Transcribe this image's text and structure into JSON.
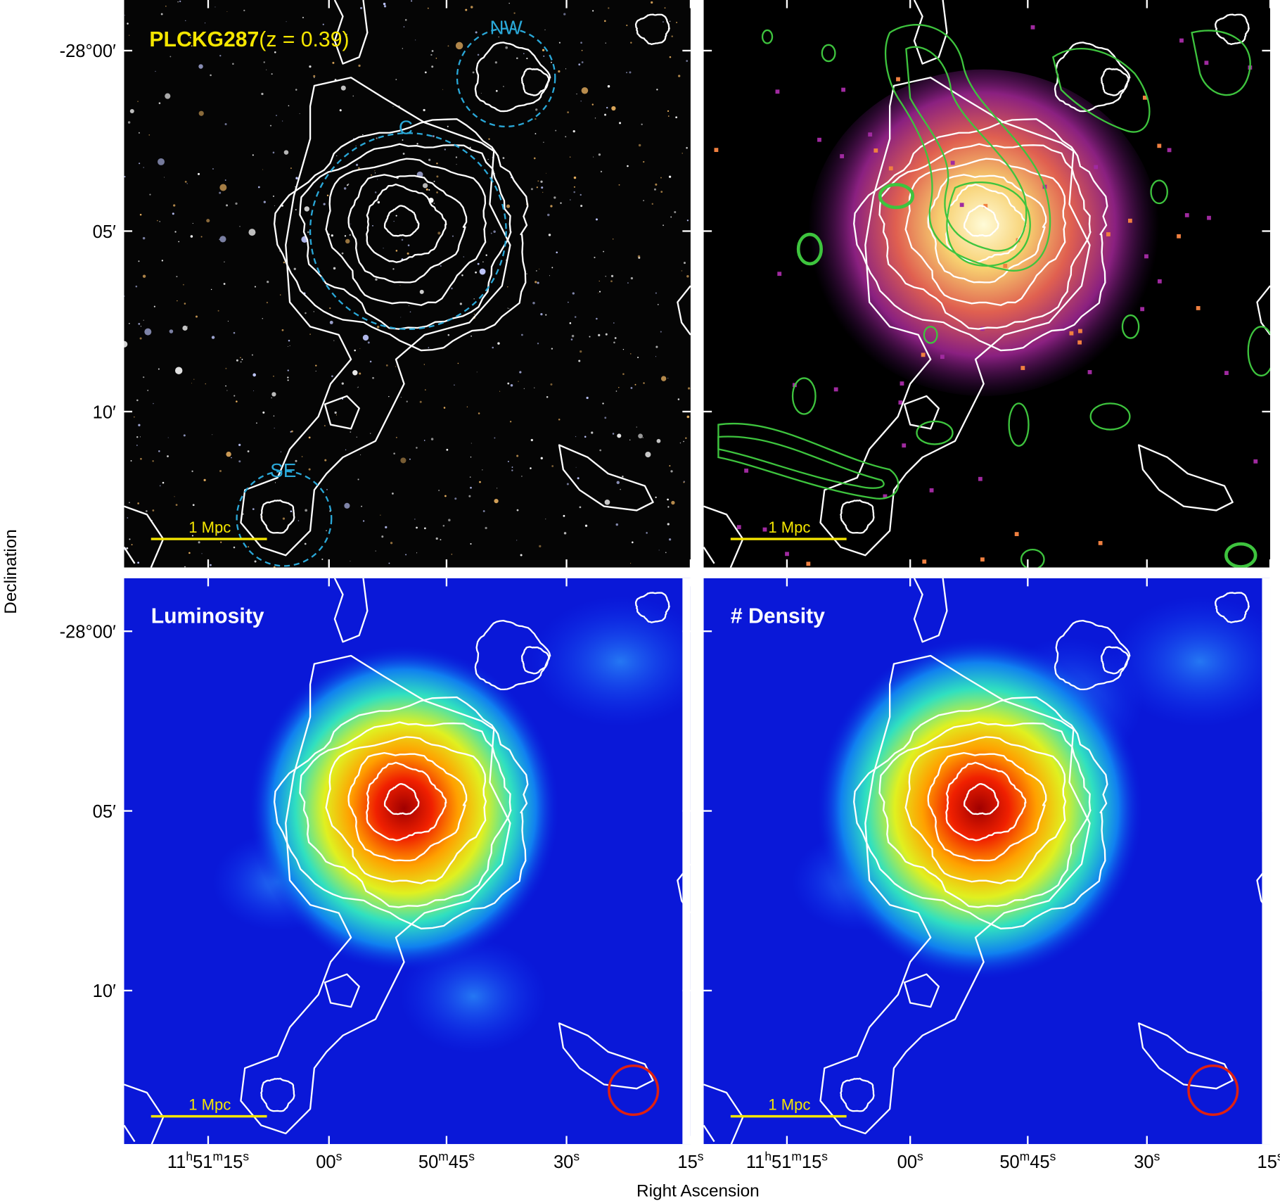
{
  "figure": {
    "y_label": "Declination",
    "x_label": "Right Ascension",
    "y_ticks": [
      "-28°00′",
      "05′",
      "10′"
    ],
    "x_ticks": [
      [
        "11",
        "h",
        "51",
        "m",
        "15",
        "s"
      ],
      [
        "00",
        "s"
      ],
      [
        "50",
        "m",
        "45",
        "s"
      ],
      [
        "30",
        "s"
      ],
      [
        "15",
        "s"
      ]
    ]
  },
  "panels": [
    {
      "title": [
        "PLCKG287",
        "(z = 0.39)"
      ],
      "regions": [
        "NW",
        "C",
        "SE"
      ],
      "scale_bar": "1 Mpc"
    },
    {
      "scale_bar": "1 Mpc"
    },
    {
      "title": "Luminosity",
      "scale_bar": "1 Mpc"
    },
    {
      "title": "# Density",
      "scale_bar": "1 Mpc"
    }
  ]
}
